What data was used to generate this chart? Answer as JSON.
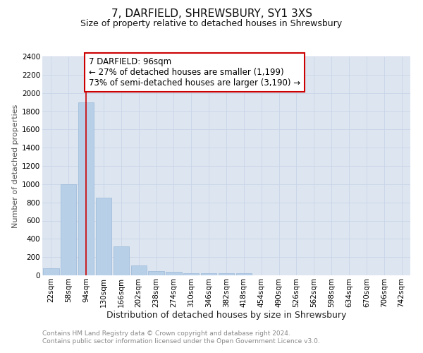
{
  "title": "7, DARFIELD, SHREWSBURY, SY1 3XS",
  "subtitle": "Size of property relative to detached houses in Shrewsbury",
  "xlabel": "Distribution of detached houses by size in Shrewsbury",
  "ylabel": "Number of detached properties",
  "categories": [
    "22sqm",
    "58sqm",
    "94sqm",
    "130sqm",
    "166sqm",
    "202sqm",
    "238sqm",
    "274sqm",
    "310sqm",
    "346sqm",
    "382sqm",
    "418sqm",
    "454sqm",
    "490sqm",
    "526sqm",
    "562sqm",
    "598sqm",
    "634sqm",
    "670sqm",
    "706sqm",
    "742sqm"
  ],
  "values": [
    80,
    1000,
    1900,
    850,
    320,
    110,
    45,
    35,
    25,
    20,
    20,
    20,
    0,
    0,
    0,
    0,
    0,
    0,
    0,
    0,
    0
  ],
  "bar_color": "#b8cfe8",
  "bar_edge_color": "#9ab8d8",
  "vline_x_index": 2,
  "vline_color": "#cc0000",
  "annotation_text": "7 DARFIELD: 96sqm\n← 27% of detached houses are smaller (1,199)\n73% of semi-detached houses are larger (3,190) →",
  "annotation_box_color": "#ffffff",
  "annotation_box_edge": "#cc0000",
  "ylim": [
    0,
    2400
  ],
  "yticks": [
    0,
    200,
    400,
    600,
    800,
    1000,
    1200,
    1400,
    1600,
    1800,
    2000,
    2200,
    2400
  ],
  "grid_color": "#c8d4e8",
  "bg_color": "#dde6f0",
  "footnote": "Contains HM Land Registry data © Crown copyright and database right 2024.\nContains public sector information licensed under the Open Government Licence v3.0.",
  "title_fontsize": 11,
  "subtitle_fontsize": 9,
  "xlabel_fontsize": 9,
  "ylabel_fontsize": 8,
  "tick_fontsize": 7.5,
  "annotation_fontsize": 8.5,
  "footnote_fontsize": 6.5
}
